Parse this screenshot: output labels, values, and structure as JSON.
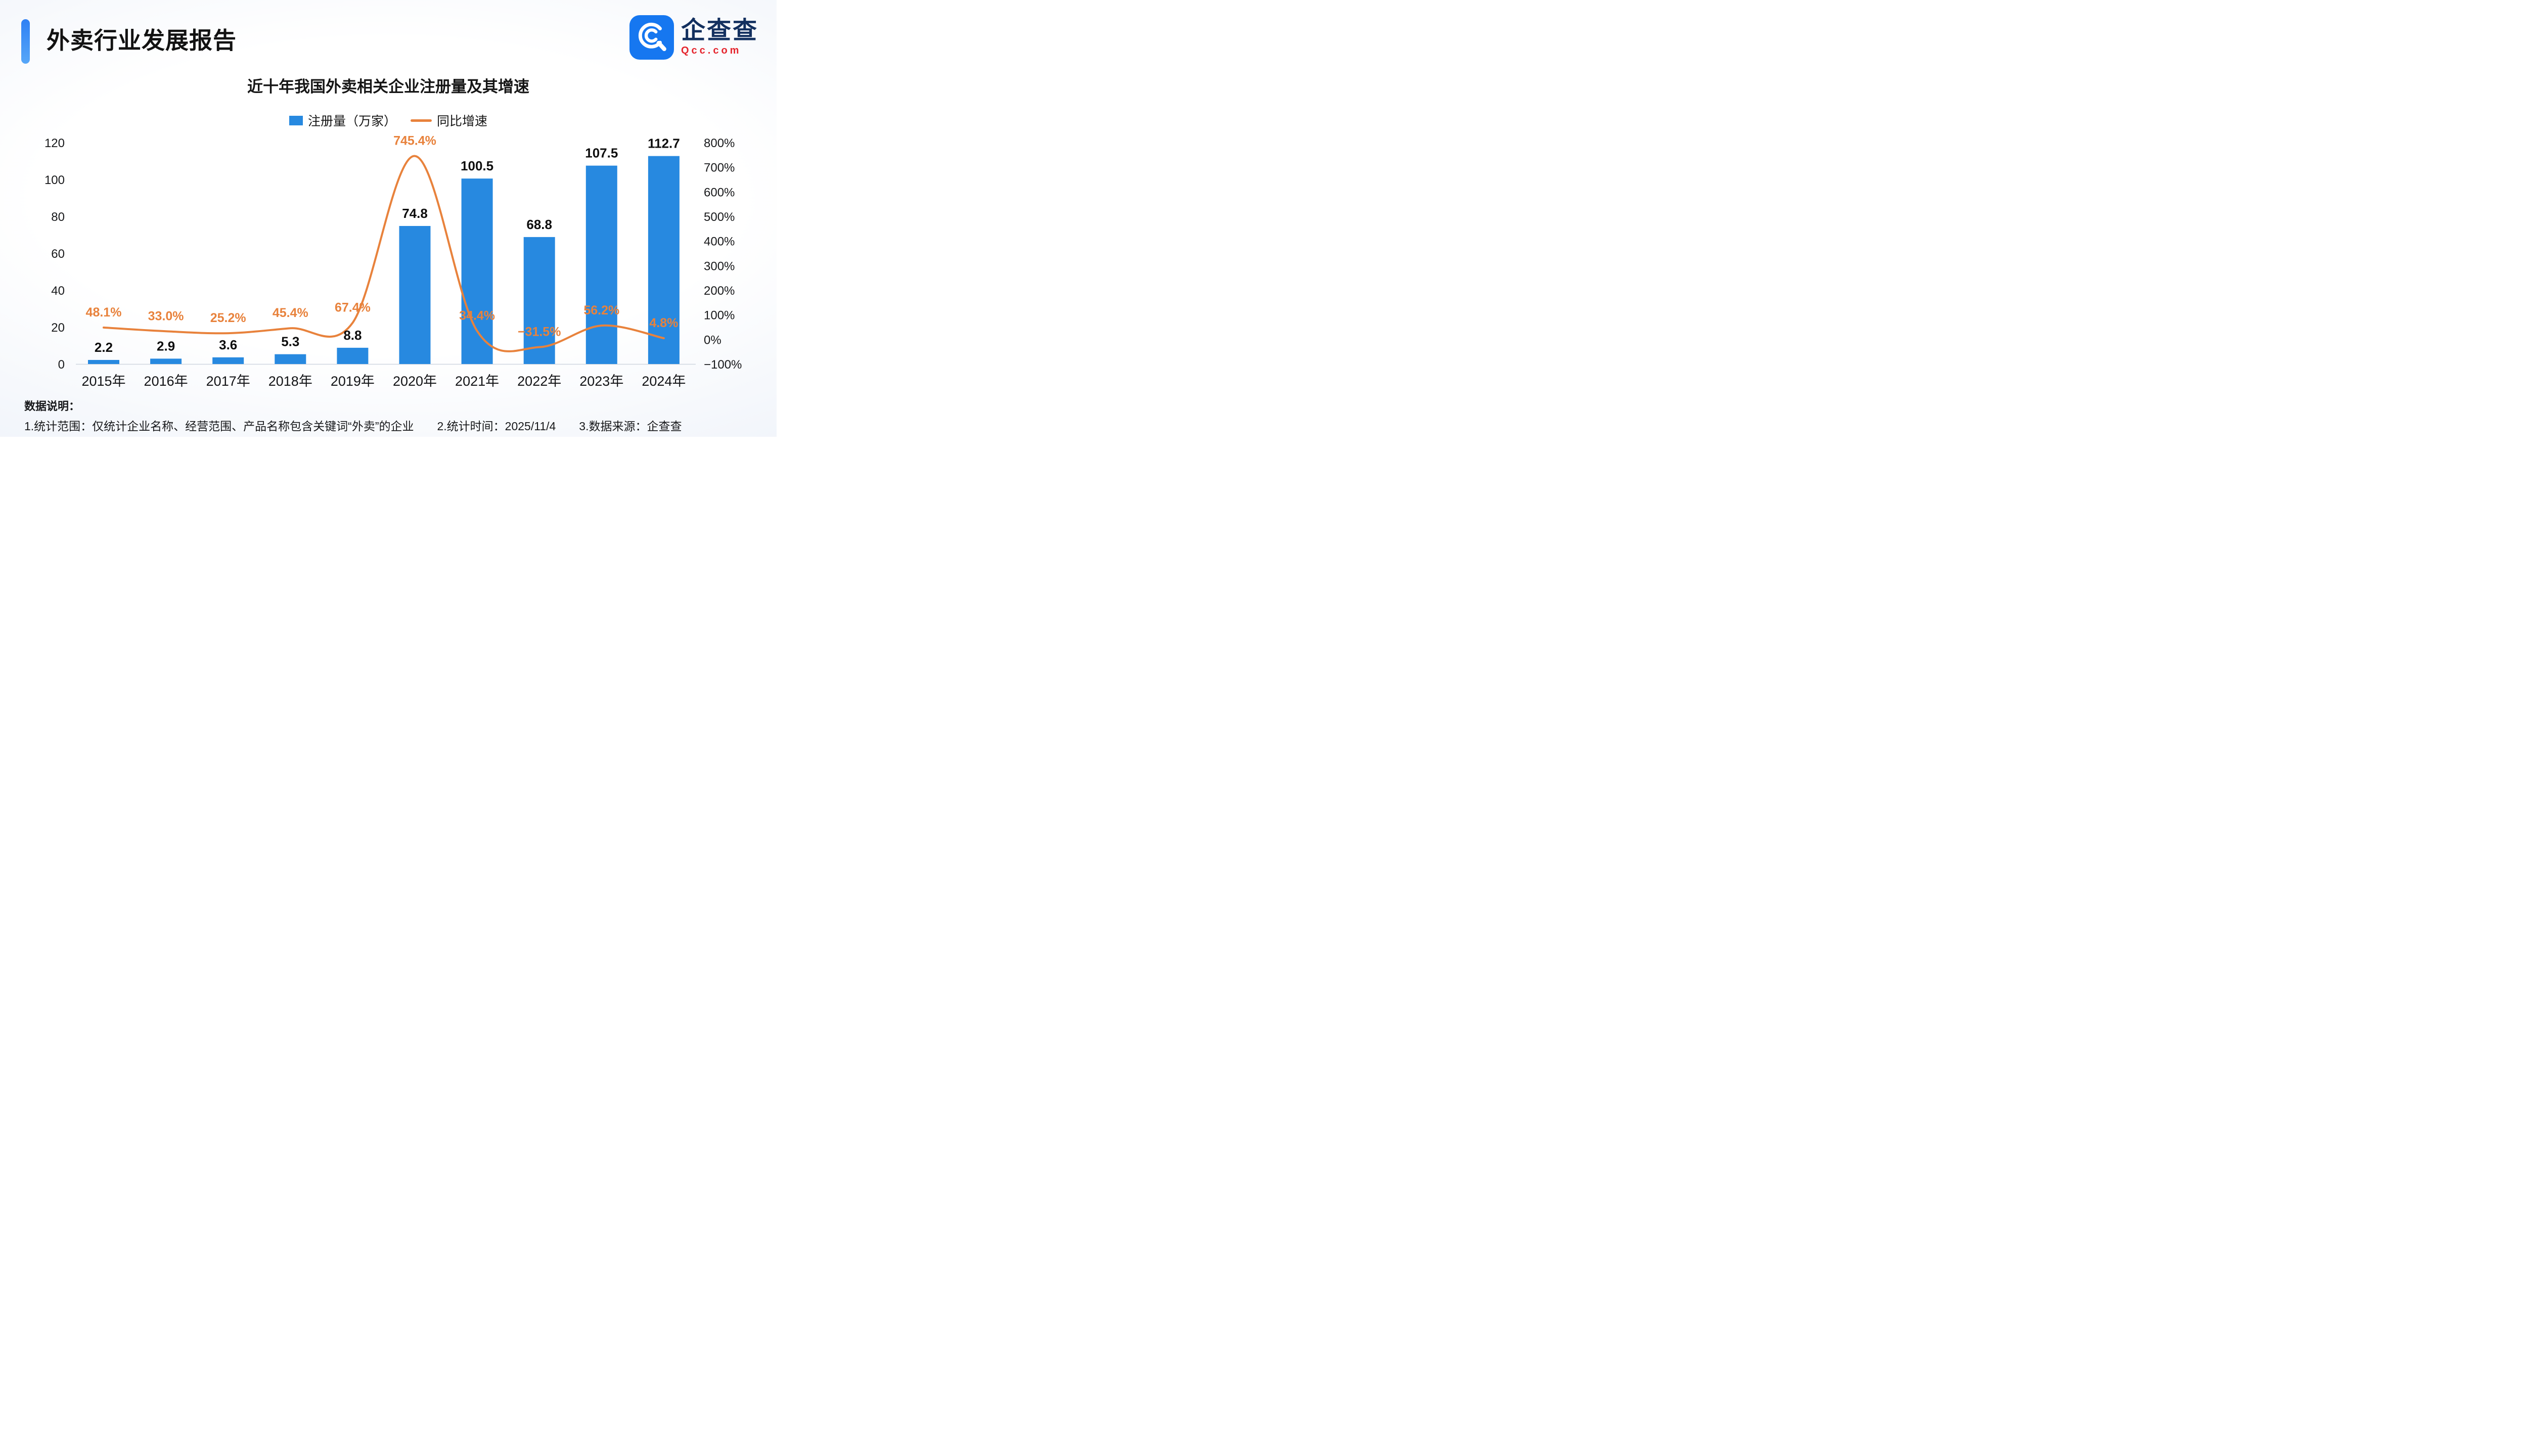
{
  "page": {
    "report_title": "外卖行业发展报告"
  },
  "logo": {
    "brand_cn": "企查查",
    "brand_en": "Qcc.com"
  },
  "chart_data": {
    "type": "combo",
    "title": "近十年我国外卖相关企业注册量及其增速",
    "categories": [
      "2015年",
      "2016年",
      "2017年",
      "2018年",
      "2019年",
      "2020年",
      "2021年",
      "2022年",
      "2023年",
      "2024年"
    ],
    "series": [
      {
        "name": "注册量（万家）",
        "type": "bar",
        "axis": "left",
        "color": "#2789e0",
        "values": [
          2.2,
          2.9,
          3.6,
          5.3,
          8.8,
          74.8,
          100.5,
          68.8,
          107.5,
          112.7
        ],
        "value_labels": [
          "2.2",
          "2.9",
          "3.6",
          "5.3",
          "8.8",
          "74.8",
          "100.5",
          "68.8",
          "107.5",
          "112.7"
        ]
      },
      {
        "name": "同比增速",
        "type": "line",
        "axis": "right",
        "color": "#e8823c",
        "values": [
          48.1,
          33.0,
          25.2,
          45.4,
          67.4,
          745.4,
          34.4,
          -31.5,
          56.2,
          4.8
        ],
        "value_labels": [
          "48.1%",
          "33.0%",
          "25.2%",
          "45.4%",
          "67.4%",
          "745.4%",
          "34.4%",
          "−31.5%",
          "56.2%",
          "4.8%"
        ]
      }
    ],
    "left_axis": {
      "min": 0,
      "max": 120,
      "tick_values": [
        0,
        20,
        40,
        60,
        80,
        100,
        120
      ]
    },
    "right_axis": {
      "min": -100,
      "max": 800,
      "tick_values": [
        -100,
        0,
        100,
        200,
        300,
        400,
        500,
        600,
        700,
        800
      ],
      "tick_labels": [
        "−100%",
        "0%",
        "100%",
        "200%",
        "300%",
        "400%",
        "500%",
        "600%",
        "700%",
        "800%"
      ]
    },
    "legend_position": "top",
    "grid": false
  },
  "footer": {
    "heading": "数据说明：",
    "note1": "1.统计范围：仅统计企业名称、经营范围、产品名称包含关键词“外卖”的企业",
    "note2": "2.统计时间：2025/11/4",
    "note3": "3.数据来源：企查查"
  }
}
